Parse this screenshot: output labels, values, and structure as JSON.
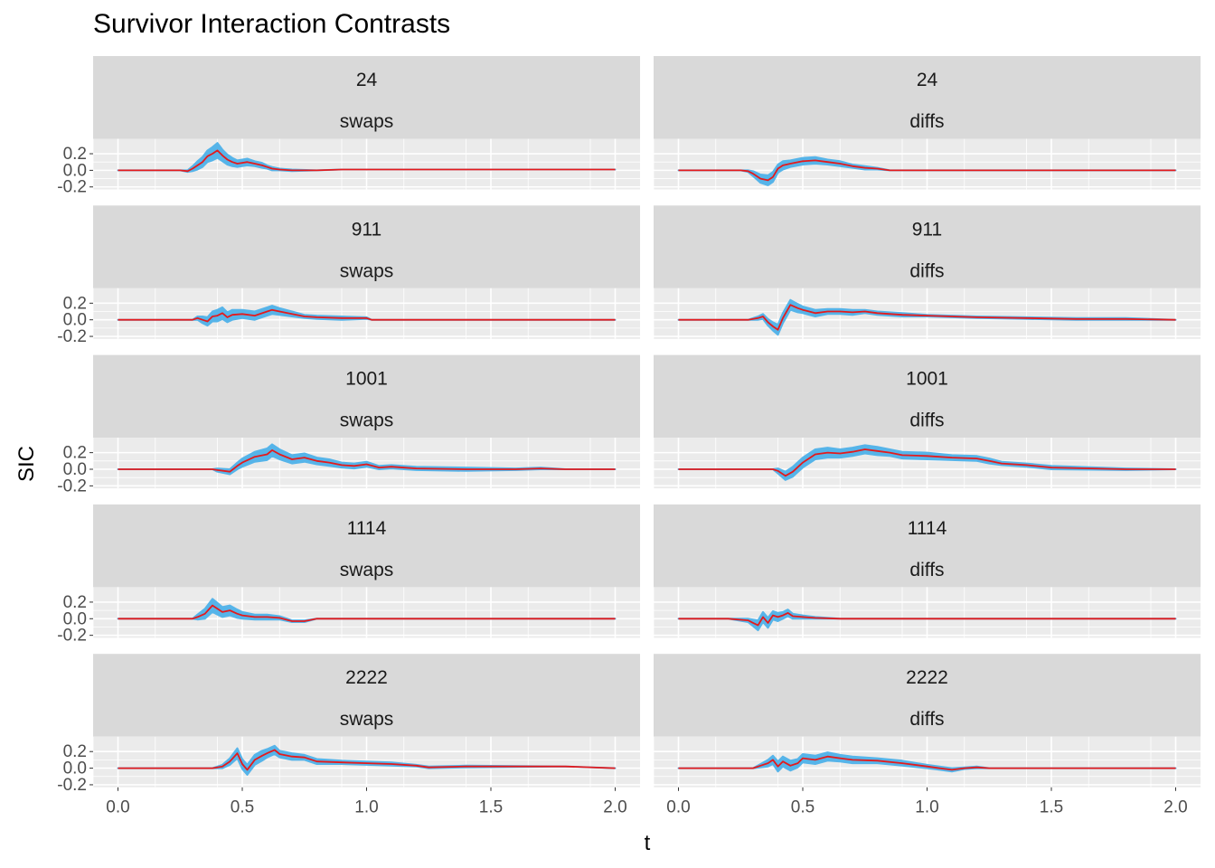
{
  "chart_data": {
    "type": "line",
    "title": "Survivor Interaction Contrasts",
    "xlabel": "t",
    "ylabel": "SIC",
    "xlim": [
      -0.1,
      2.1
    ],
    "ylim": [
      -0.23,
      0.38
    ],
    "x_ticks": [
      0.0,
      0.5,
      1.0,
      1.5,
      2.0
    ],
    "x_tick_labels": [
      "0.0",
      "0.5",
      "1.0",
      "1.5",
      "2.0"
    ],
    "y_ticks": [
      0.2,
      0.0,
      -0.2
    ],
    "y_tick_labels": [
      "0.2",
      "0.0",
      "-0.2"
    ],
    "grid": true,
    "facet_columns": [
      "swaps",
      "diffs"
    ],
    "facet_rows": [
      "24",
      "911",
      "1001",
      "1114",
      "2222"
    ],
    "colors": {
      "line": "#e41a1c",
      "band": "#56b4e9",
      "strip_bg": "#d9d9d9",
      "panel_bg": "#ebebeb"
    },
    "panels": [
      {
        "row": "24",
        "col": "swaps",
        "x": [
          0,
          0.25,
          0.28,
          0.3,
          0.32,
          0.34,
          0.36,
          0.38,
          0.4,
          0.42,
          0.44,
          0.46,
          0.48,
          0.5,
          0.52,
          0.55,
          0.58,
          0.6,
          0.62,
          0.65,
          0.7,
          0.8,
          0.9,
          1.0,
          1.5,
          2.0
        ],
        "y": [
          0,
          0,
          -0.01,
          0.02,
          0.06,
          0.1,
          0.17,
          0.2,
          0.24,
          0.18,
          0.13,
          0.1,
          0.08,
          0.09,
          0.1,
          0.08,
          0.06,
          0.04,
          0.02,
          0.01,
          0,
          0,
          0.01,
          0.01,
          0.01,
          0.01
        ],
        "band_halfwidth": [
          0,
          0,
          0.01,
          0.03,
          0.05,
          0.06,
          0.07,
          0.08,
          0.09,
          0.07,
          0.06,
          0.05,
          0.04,
          0.04,
          0.04,
          0.03,
          0.03,
          0.02,
          0.02,
          0.01,
          0.01,
          0,
          0,
          0,
          0,
          0
        ]
      },
      {
        "row": "24",
        "col": "diffs",
        "x": [
          0,
          0.25,
          0.28,
          0.3,
          0.33,
          0.36,
          0.38,
          0.4,
          0.42,
          0.45,
          0.5,
          0.55,
          0.6,
          0.65,
          0.7,
          0.75,
          0.8,
          0.85,
          1.0,
          1.5,
          2.0
        ],
        "y": [
          0,
          0,
          -0.01,
          -0.04,
          -0.1,
          -0.12,
          -0.08,
          0.02,
          0.06,
          0.08,
          0.11,
          0.12,
          0.1,
          0.08,
          0.05,
          0.03,
          0.02,
          0,
          0,
          0,
          0
        ],
        "band_halfwidth": [
          0,
          0,
          0.01,
          0.03,
          0.05,
          0.06,
          0.06,
          0.05,
          0.05,
          0.04,
          0.04,
          0.04,
          0.03,
          0.03,
          0.02,
          0.02,
          0.01,
          0,
          0,
          0,
          0
        ]
      },
      {
        "row": "911",
        "col": "swaps",
        "x": [
          0,
          0.3,
          0.32,
          0.34,
          0.36,
          0.38,
          0.4,
          0.42,
          0.44,
          0.46,
          0.5,
          0.55,
          0.6,
          0.62,
          0.65,
          0.7,
          0.75,
          0.8,
          0.9,
          1.0,
          1.02,
          1.5,
          2.0
        ],
        "y": [
          0,
          0,
          0.02,
          0.0,
          -0.02,
          0.04,
          0.05,
          0.08,
          0.03,
          0.06,
          0.07,
          0.05,
          0.1,
          0.12,
          0.1,
          0.07,
          0.04,
          0.03,
          0.02,
          0.02,
          0,
          0,
          0
        ],
        "band_halfwidth": [
          0,
          0,
          0.02,
          0.04,
          0.05,
          0.06,
          0.07,
          0.07,
          0.06,
          0.06,
          0.05,
          0.05,
          0.05,
          0.05,
          0.04,
          0.03,
          0.02,
          0.02,
          0.02,
          0.01,
          0,
          0,
          0
        ]
      },
      {
        "row": "911",
        "col": "diffs",
        "x": [
          0,
          0.28,
          0.32,
          0.34,
          0.36,
          0.38,
          0.4,
          0.42,
          0.45,
          0.48,
          0.5,
          0.55,
          0.6,
          0.65,
          0.7,
          0.75,
          0.8,
          0.9,
          1.0,
          1.2,
          1.4,
          1.6,
          1.8,
          2.0
        ],
        "y": [
          0,
          0,
          0.02,
          0.04,
          -0.03,
          -0.08,
          -0.12,
          0.02,
          0.18,
          0.14,
          0.12,
          0.08,
          0.1,
          0.1,
          0.09,
          0.1,
          0.08,
          0.06,
          0.05,
          0.03,
          0.02,
          0.01,
          0.01,
          0
        ],
        "band_halfwidth": [
          0,
          0,
          0.02,
          0.03,
          0.04,
          0.05,
          0.06,
          0.06,
          0.06,
          0.05,
          0.04,
          0.04,
          0.03,
          0.03,
          0.03,
          0.02,
          0.02,
          0.02,
          0.01,
          0.01,
          0.01,
          0.01,
          0.01,
          0
        ]
      },
      {
        "row": "1001",
        "col": "swaps",
        "x": [
          0,
          0.38,
          0.4,
          0.45,
          0.48,
          0.5,
          0.55,
          0.6,
          0.62,
          0.65,
          0.7,
          0.75,
          0.8,
          0.85,
          0.9,
          0.95,
          1.0,
          1.05,
          1.1,
          1.2,
          1.4,
          1.6,
          1.7,
          1.8,
          2.0
        ],
        "y": [
          0,
          0,
          -0.01,
          -0.03,
          0.04,
          0.08,
          0.15,
          0.18,
          0.23,
          0.18,
          0.12,
          0.14,
          0.1,
          0.08,
          0.05,
          0.04,
          0.06,
          0.02,
          0.03,
          0.01,
          0,
          0,
          0.01,
          0,
          0
        ],
        "band_halfwidth": [
          0,
          0,
          0.02,
          0.03,
          0.04,
          0.05,
          0.06,
          0.07,
          0.07,
          0.06,
          0.05,
          0.05,
          0.04,
          0.04,
          0.03,
          0.03,
          0.03,
          0.02,
          0.02,
          0.02,
          0.02,
          0.01,
          0.01,
          0,
          0
        ]
      },
      {
        "row": "1001",
        "col": "diffs",
        "x": [
          0,
          0.38,
          0.4,
          0.43,
          0.46,
          0.5,
          0.55,
          0.6,
          0.65,
          0.7,
          0.75,
          0.8,
          0.85,
          0.9,
          1.0,
          1.1,
          1.2,
          1.25,
          1.3,
          1.4,
          1.5,
          1.8,
          2.0
        ],
        "y": [
          0,
          0,
          -0.02,
          -0.08,
          -0.03,
          0.08,
          0.18,
          0.2,
          0.19,
          0.21,
          0.24,
          0.22,
          0.2,
          0.17,
          0.16,
          0.14,
          0.13,
          0.1,
          0.07,
          0.05,
          0.02,
          0,
          0
        ],
        "band_halfwidth": [
          0,
          0,
          0.03,
          0.05,
          0.06,
          0.06,
          0.06,
          0.06,
          0.05,
          0.05,
          0.05,
          0.05,
          0.04,
          0.04,
          0.04,
          0.03,
          0.03,
          0.03,
          0.02,
          0.02,
          0.02,
          0.01,
          0
        ]
      },
      {
        "row": "1114",
        "col": "swaps",
        "x": [
          0,
          0.3,
          0.32,
          0.35,
          0.38,
          0.4,
          0.42,
          0.45,
          0.48,
          0.5,
          0.55,
          0.6,
          0.65,
          0.7,
          0.75,
          0.8,
          1.0,
          1.5,
          2.0
        ],
        "y": [
          0,
          0,
          0.02,
          0.06,
          0.16,
          0.12,
          0.08,
          0.1,
          0.06,
          0.04,
          0.02,
          0.02,
          0.01,
          -0.03,
          -0.03,
          0,
          0,
          0,
          0
        ],
        "band_halfwidth": [
          0,
          0,
          0.03,
          0.06,
          0.08,
          0.07,
          0.06,
          0.06,
          0.05,
          0.04,
          0.03,
          0.03,
          0.02,
          0.01,
          0.01,
          0,
          0,
          0,
          0
        ]
      },
      {
        "row": "1114",
        "col": "diffs",
        "x": [
          0,
          0.2,
          0.28,
          0.3,
          0.32,
          0.34,
          0.36,
          0.38,
          0.4,
          0.42,
          0.44,
          0.46,
          0.5,
          0.55,
          0.65,
          1.0,
          1.5,
          1.8,
          2.0
        ],
        "y": [
          0,
          0,
          -0.02,
          -0.05,
          -0.08,
          0.02,
          -0.05,
          0.04,
          0.02,
          0.04,
          0.07,
          0.03,
          0.02,
          0.01,
          0,
          0,
          0,
          0,
          0
        ],
        "band_halfwidth": [
          0,
          0,
          0.02,
          0.04,
          0.06,
          0.06,
          0.06,
          0.05,
          0.05,
          0.04,
          0.04,
          0.03,
          0.02,
          0.01,
          0,
          0,
          0,
          0,
          0
        ]
      },
      {
        "row": "2222",
        "col": "swaps",
        "x": [
          0,
          0.38,
          0.42,
          0.45,
          0.48,
          0.5,
          0.52,
          0.55,
          0.58,
          0.6,
          0.63,
          0.65,
          0.7,
          0.75,
          0.8,
          0.9,
          1.0,
          1.1,
          1.2,
          1.25,
          1.4,
          1.8,
          2.0
        ],
        "y": [
          0,
          0,
          0.02,
          0.08,
          0.18,
          0.05,
          -0.02,
          0.1,
          0.15,
          0.18,
          0.22,
          0.17,
          0.14,
          0.13,
          0.08,
          0.07,
          0.06,
          0.05,
          0.03,
          0.01,
          0.02,
          0.02,
          0
        ],
        "band_halfwidth": [
          0,
          0,
          0.02,
          0.04,
          0.06,
          0.06,
          0.06,
          0.06,
          0.06,
          0.05,
          0.05,
          0.04,
          0.04,
          0.03,
          0.03,
          0.02,
          0.02,
          0.02,
          0.01,
          0.01,
          0.01,
          0,
          0
        ]
      },
      {
        "row": "2222",
        "col": "diffs",
        "x": [
          0,
          0.3,
          0.33,
          0.36,
          0.38,
          0.4,
          0.42,
          0.45,
          0.48,
          0.5,
          0.55,
          0.6,
          0.65,
          0.7,
          0.8,
          0.9,
          1.0,
          1.05,
          1.1,
          1.15,
          1.2,
          1.25,
          2.0
        ],
        "y": [
          0,
          0,
          0.03,
          0.06,
          0.1,
          0.02,
          0.08,
          0.03,
          0.06,
          0.12,
          0.1,
          0.14,
          0.12,
          0.1,
          0.09,
          0.06,
          0.02,
          0.0,
          -0.02,
          0.0,
          0.01,
          0,
          0
        ],
        "band_halfwidth": [
          0,
          0,
          0.02,
          0.04,
          0.05,
          0.06,
          0.06,
          0.06,
          0.05,
          0.05,
          0.05,
          0.05,
          0.04,
          0.04,
          0.03,
          0.03,
          0.02,
          0.02,
          0.02,
          0.01,
          0.01,
          0,
          0
        ]
      }
    ]
  }
}
